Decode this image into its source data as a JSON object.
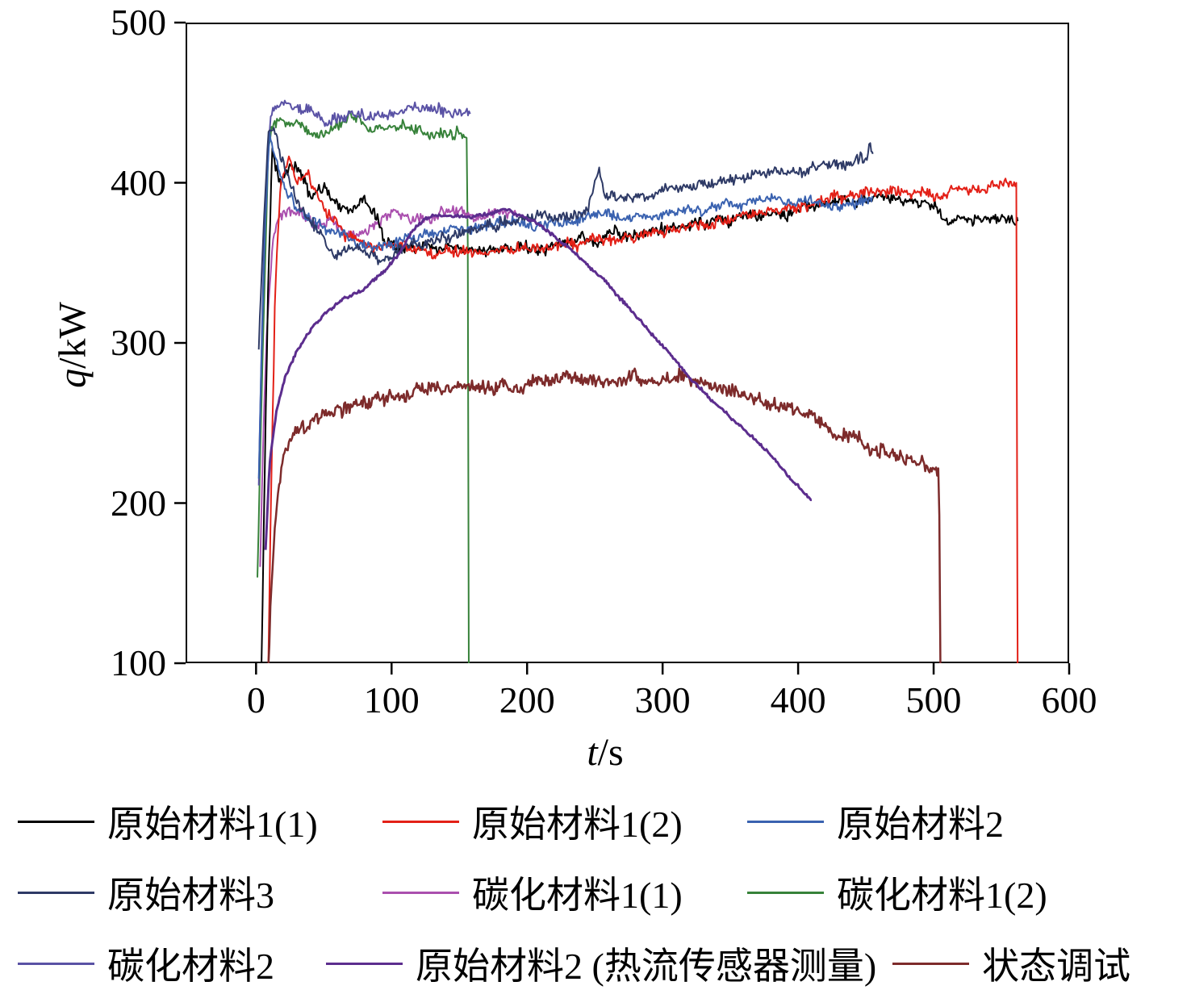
{
  "chart_data": {
    "type": "line",
    "title": "",
    "xlabel_italic": "t",
    "xlabel_unit": "/s",
    "ylabel_italic": "q",
    "ylabel_unit": "/kW",
    "xlim": [
      -52,
      600
    ],
    "ylim": [
      100,
      500
    ],
    "x_ticks": [
      0,
      100,
      200,
      300,
      400,
      500,
      600
    ],
    "y_ticks": [
      100,
      200,
      300,
      400,
      500
    ],
    "grid": false,
    "legend_position": "below",
    "draw_order": [
      5,
      6,
      4,
      0,
      1,
      2,
      3,
      8,
      7
    ],
    "series": [
      {
        "name": "原始材料1(1)",
        "color": "#000000",
        "noise": 4,
        "width": 2,
        "points": [
          [
            4,
            95
          ],
          [
            6,
            200
          ],
          [
            9,
            340
          ],
          [
            12,
            420
          ],
          [
            18,
            398
          ],
          [
            25,
            412
          ],
          [
            32,
            408
          ],
          [
            40,
            390
          ],
          [
            50,
            396
          ],
          [
            60,
            388
          ],
          [
            70,
            383
          ],
          [
            80,
            390
          ],
          [
            88,
            378
          ],
          [
            95,
            362
          ],
          [
            105,
            357
          ],
          [
            120,
            360
          ],
          [
            140,
            358
          ],
          [
            160,
            356
          ],
          [
            185,
            358
          ],
          [
            210,
            360
          ],
          [
            240,
            363
          ],
          [
            270,
            367
          ],
          [
            300,
            371
          ],
          [
            330,
            375
          ],
          [
            360,
            379
          ],
          [
            390,
            383
          ],
          [
            420,
            387
          ],
          [
            445,
            390
          ],
          [
            465,
            391
          ],
          [
            490,
            390
          ],
          [
            500,
            388
          ],
          [
            508,
            377
          ],
          [
            525,
            376
          ],
          [
            545,
            377
          ],
          [
            562,
            376
          ]
        ]
      },
      {
        "name": "原始材料1(2)",
        "color": "#e32017",
        "noise": 4,
        "width": 2,
        "points": [
          [
            9,
            95
          ],
          [
            11,
            200
          ],
          [
            14,
            330
          ],
          [
            18,
            400
          ],
          [
            24,
            418
          ],
          [
            30,
            402
          ],
          [
            37,
            410
          ],
          [
            45,
            392
          ],
          [
            55,
            378
          ],
          [
            65,
            368
          ],
          [
            80,
            362
          ],
          [
            100,
            360
          ],
          [
            130,
            358
          ],
          [
            160,
            357
          ],
          [
            190,
            359
          ],
          [
            220,
            361
          ],
          [
            250,
            364
          ],
          [
            280,
            367
          ],
          [
            310,
            371
          ],
          [
            340,
            375
          ],
          [
            370,
            380
          ],
          [
            400,
            386
          ],
          [
            425,
            391
          ],
          [
            450,
            394
          ],
          [
            475,
            393
          ],
          [
            500,
            392
          ],
          [
            515,
            396
          ],
          [
            535,
            398
          ],
          [
            555,
            400
          ],
          [
            561,
            399
          ],
          [
            562,
            95
          ]
        ]
      },
      {
        "name": "原始材料2",
        "color": "#3a62b0",
        "noise": 4,
        "width": 2,
        "points": [
          [
            2,
            215
          ],
          [
            4,
            290
          ],
          [
            7,
            380
          ],
          [
            10,
            428
          ],
          [
            15,
            412
          ],
          [
            22,
            395
          ],
          [
            30,
            383
          ],
          [
            40,
            375
          ],
          [
            55,
            370
          ],
          [
            70,
            366
          ],
          [
            85,
            361
          ],
          [
            100,
            363
          ],
          [
            120,
            367
          ],
          [
            140,
            371
          ],
          [
            160,
            374
          ],
          [
            185,
            376
          ],
          [
            210,
            375
          ],
          [
            240,
            377
          ],
          [
            270,
            379
          ],
          [
            300,
            381
          ],
          [
            330,
            384
          ],
          [
            360,
            387
          ],
          [
            385,
            389
          ],
          [
            405,
            390
          ],
          [
            420,
            387
          ],
          [
            435,
            385
          ],
          [
            448,
            389
          ],
          [
            455,
            391
          ]
        ]
      },
      {
        "name": "原始材料3",
        "color": "#2e3a66",
        "noise": 4,
        "width": 2,
        "points": [
          [
            2,
            295
          ],
          [
            5,
            360
          ],
          [
            9,
            430
          ],
          [
            13,
            436
          ],
          [
            20,
            412
          ],
          [
            28,
            393
          ],
          [
            38,
            376
          ],
          [
            48,
            366
          ],
          [
            58,
            353
          ],
          [
            70,
            360
          ],
          [
            82,
            357
          ],
          [
            95,
            352
          ],
          [
            110,
            357
          ],
          [
            130,
            363
          ],
          [
            150,
            368
          ],
          [
            170,
            373
          ],
          [
            195,
            377
          ],
          [
            220,
            379
          ],
          [
            245,
            383
          ],
          [
            253,
            410
          ],
          [
            258,
            392
          ],
          [
            275,
            391
          ],
          [
            300,
            395
          ],
          [
            325,
            398
          ],
          [
            350,
            401
          ],
          [
            375,
            404
          ],
          [
            400,
            407
          ],
          [
            420,
            410
          ],
          [
            438,
            413
          ],
          [
            450,
            416
          ],
          [
            453,
            425
          ],
          [
            455,
            418
          ]
        ]
      },
      {
        "name": "碳化材料1(1)",
        "color": "#aa4fae",
        "noise": 4,
        "width": 2,
        "points": [
          [
            3,
            158
          ],
          [
            5,
            230
          ],
          [
            8,
            310
          ],
          [
            12,
            360
          ],
          [
            16,
            377
          ],
          [
            25,
            381
          ],
          [
            35,
            378
          ],
          [
            45,
            372
          ],
          [
            55,
            375
          ],
          [
            65,
            371
          ],
          [
            75,
            368
          ],
          [
            85,
            373
          ],
          [
            95,
            379
          ],
          [
            110,
            377
          ],
          [
            125,
            380
          ],
          [
            140,
            382
          ],
          [
            155,
            380
          ],
          [
            170,
            378
          ],
          [
            182,
            380
          ],
          [
            192,
            379
          ]
        ]
      },
      {
        "name": "碳化材料1(2)",
        "color": "#37823a",
        "noise": 4,
        "width": 2,
        "points": [
          [
            1,
            152
          ],
          [
            3,
            230
          ],
          [
            6,
            330
          ],
          [
            9,
            420
          ],
          [
            12,
            436
          ],
          [
            20,
            440
          ],
          [
            30,
            437
          ],
          [
            40,
            433
          ],
          [
            50,
            431
          ],
          [
            60,
            436
          ],
          [
            70,
            440
          ],
          [
            80,
            434
          ],
          [
            90,
            431
          ],
          [
            100,
            434
          ],
          [
            110,
            436
          ],
          [
            120,
            433
          ],
          [
            130,
            431
          ],
          [
            140,
            432
          ],
          [
            150,
            433
          ],
          [
            156,
            432
          ],
          [
            157,
            95
          ]
        ]
      },
      {
        "name": "碳化材料2",
        "color": "#5a52a5",
        "noise": 4,
        "width": 2,
        "points": [
          [
            2,
            212
          ],
          [
            4,
            300
          ],
          [
            7,
            390
          ],
          [
            11,
            445
          ],
          [
            16,
            450
          ],
          [
            24,
            452
          ],
          [
            32,
            448
          ],
          [
            42,
            444
          ],
          [
            52,
            440
          ],
          [
            62,
            442
          ],
          [
            75,
            444
          ],
          [
            88,
            440
          ],
          [
            100,
            443
          ],
          [
            112,
            446
          ],
          [
            125,
            447
          ],
          [
            138,
            445
          ],
          [
            150,
            444
          ],
          [
            158,
            443
          ]
        ]
      },
      {
        "name": "原始材料2 (热流传感器测量)",
        "color": "#5c2d8e",
        "noise": 1.2,
        "width": 3,
        "points": [
          [
            7,
            170
          ],
          [
            10,
            225
          ],
          [
            15,
            258
          ],
          [
            22,
            280
          ],
          [
            30,
            295
          ],
          [
            40,
            308
          ],
          [
            50,
            318
          ],
          [
            65,
            328
          ],
          [
            80,
            333
          ],
          [
            95,
            345
          ],
          [
            105,
            355
          ],
          [
            115,
            370
          ],
          [
            125,
            378
          ],
          [
            140,
            380
          ],
          [
            155,
            378
          ],
          [
            170,
            380
          ],
          [
            185,
            383
          ],
          [
            200,
            378
          ],
          [
            215,
            370
          ],
          [
            230,
            360
          ],
          [
            245,
            348
          ],
          [
            260,
            336
          ],
          [
            275,
            322
          ],
          [
            290,
            308
          ],
          [
            305,
            294
          ],
          [
            320,
            278
          ],
          [
            335,
            265
          ],
          [
            350,
            254
          ],
          [
            365,
            242
          ],
          [
            380,
            230
          ],
          [
            395,
            215
          ],
          [
            405,
            206
          ],
          [
            410,
            202
          ]
        ]
      },
      {
        "name": "状态调试",
        "color": "#7d2b2b",
        "noise": 5,
        "width": 2.5,
        "points": [
          [
            9,
            95
          ],
          [
            11,
            140
          ],
          [
            13,
            175
          ],
          [
            16,
            205
          ],
          [
            20,
            225
          ],
          [
            25,
            237
          ],
          [
            32,
            245
          ],
          [
            42,
            251
          ],
          [
            55,
            257
          ],
          [
            70,
            262
          ],
          [
            85,
            265
          ],
          [
            100,
            268
          ],
          [
            115,
            270
          ],
          [
            130,
            272
          ],
          [
            150,
            271
          ],
          [
            170,
            271
          ],
          [
            195,
            272
          ],
          [
            215,
            275
          ],
          [
            235,
            277
          ],
          [
            255,
            278
          ],
          [
            275,
            277
          ],
          [
            295,
            276
          ],
          [
            315,
            276
          ],
          [
            330,
            273
          ],
          [
            345,
            270
          ],
          [
            360,
            267
          ],
          [
            375,
            264
          ],
          [
            388,
            261
          ],
          [
            400,
            257
          ],
          [
            412,
            251
          ],
          [
            425,
            244
          ],
          [
            440,
            240
          ],
          [
            455,
            236
          ],
          [
            468,
            231
          ],
          [
            480,
            228
          ],
          [
            492,
            225
          ],
          [
            502,
            221
          ],
          [
            504,
            220
          ],
          [
            505,
            95
          ]
        ]
      }
    ],
    "legend_rows": [
      [
        0,
        1,
        2
      ],
      [
        3,
        4,
        5
      ],
      [
        6,
        7,
        8
      ]
    ]
  }
}
